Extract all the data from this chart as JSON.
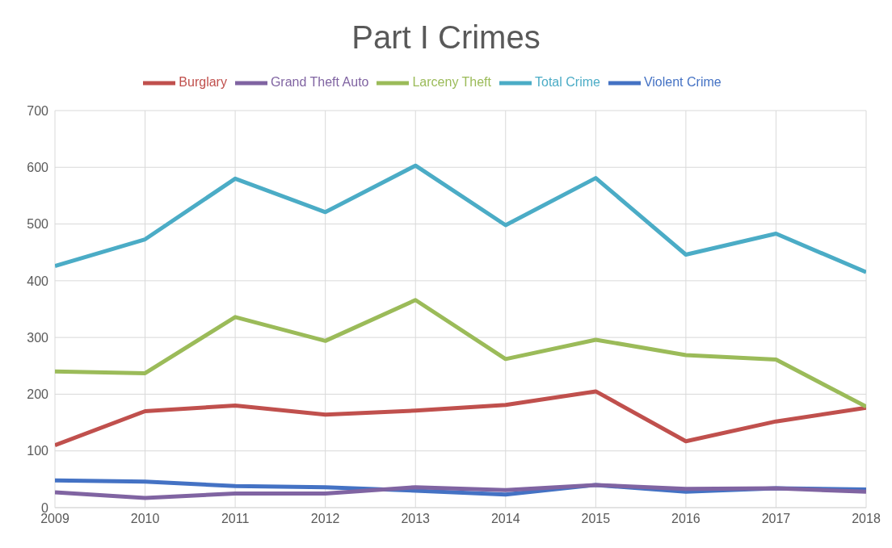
{
  "chart_data": {
    "type": "line",
    "title": "Part I Crimes",
    "x": [
      2009,
      2010,
      2011,
      2012,
      2013,
      2014,
      2015,
      2016,
      2017,
      2018
    ],
    "xlim": [
      2009,
      2018
    ],
    "xticks": [
      2009,
      2010,
      2011,
      2012,
      2013,
      2014,
      2015,
      2016,
      2017,
      2018
    ],
    "ylim": [
      0,
      700
    ],
    "yticks": [
      0,
      100,
      200,
      300,
      400,
      500,
      600,
      700
    ],
    "grid": true,
    "legend": "top",
    "series": [
      {
        "name": "Violent Crime",
        "color": "#4472c4",
        "values": [
          48,
          46,
          38,
          36,
          30,
          23,
          40,
          28,
          34,
          32
        ]
      },
      {
        "name": "Burglary",
        "color": "#c0504d",
        "values": [
          110,
          170,
          180,
          164,
          171,
          181,
          205,
          117,
          152,
          176
        ]
      },
      {
        "name": "Larceny Theft",
        "color": "#9bbb59",
        "values": [
          240,
          237,
          336,
          294,
          366,
          262,
          296,
          269,
          261,
          178
        ]
      },
      {
        "name": "Grand Theft Auto",
        "color": "#8064a2",
        "values": [
          27,
          17,
          25,
          25,
          36,
          31,
          40,
          33,
          34,
          28
        ]
      },
      {
        "name": "Total Crime",
        "color": "#4bacc6",
        "values": [
          426,
          473,
          580,
          521,
          603,
          498,
          581,
          446,
          483,
          415
        ]
      }
    ]
  }
}
